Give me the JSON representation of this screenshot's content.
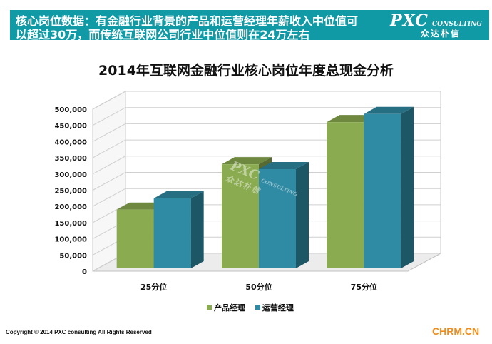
{
  "header": {
    "line1": "核心岗位数据：有金融行业背景的产品和运营经理年薪收入中位值可",
    "line2": "以超过30万，而传统互联网公司行业中位值则在24万左右",
    "brand_main": "PXC",
    "brand_sub": "CONSULTING",
    "brand_cn": "众达朴信"
  },
  "colors": {
    "header_bg": "#0f9aa6",
    "series1": "#8aab4f",
    "series2": "#2f8aa3"
  },
  "chart_data": {
    "type": "bar",
    "title": "2014年互联网金融行业核心岗位年度总现金分析",
    "categories": [
      "25分位",
      "50分位",
      "75分位"
    ],
    "series": [
      {
        "name": "产品经理",
        "values": [
          190000,
          330000,
          460000
        ]
      },
      {
        "name": "运营经理",
        "values": [
          225000,
          315000,
          485000
        ]
      }
    ],
    "ylim": [
      0,
      500000
    ],
    "yticks": [
      "0",
      "50,000",
      "100,000",
      "150,000",
      "200,000",
      "250,000",
      "300,000",
      "350,000",
      "400,000",
      "450,000",
      "500,000"
    ],
    "grid": true,
    "legend": "bottom"
  },
  "footer": {
    "copyright": "Copyright © 2014  PXC consulting All Rights Reserved",
    "site": "CHRM.CN"
  },
  "watermark": {
    "main": "PXC",
    "sub": "CONSULTING",
    "cn": "众达朴信"
  }
}
